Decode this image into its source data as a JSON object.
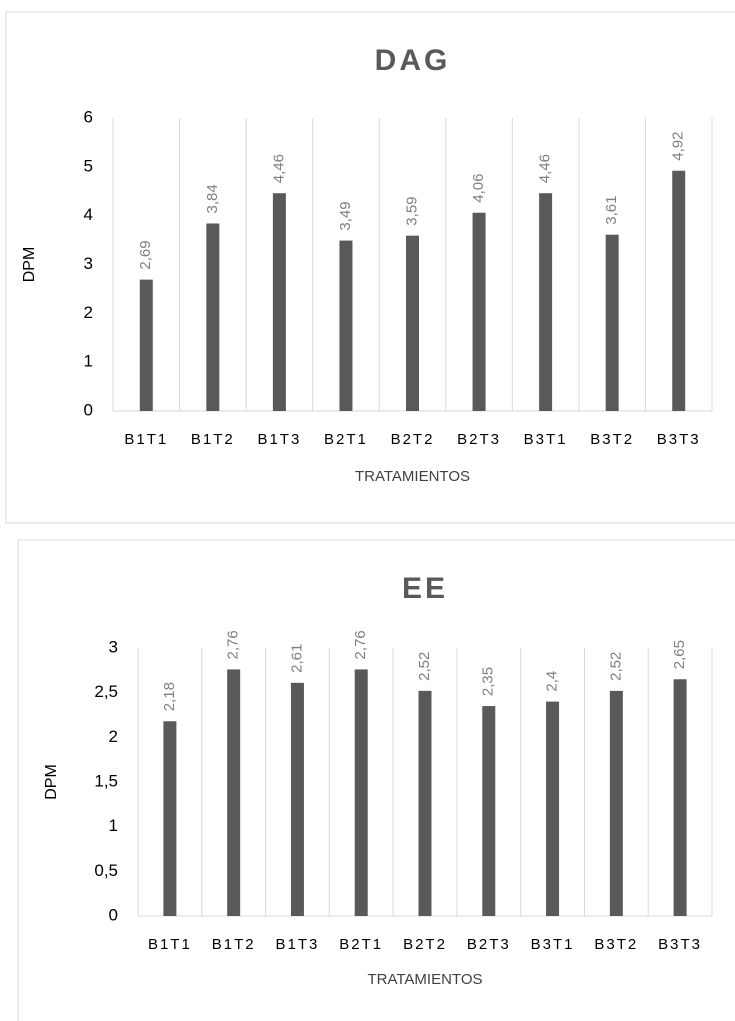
{
  "chart_data": [
    {
      "type": "bar",
      "title": "DAG",
      "y_label": "DPM",
      "x_label": "TRATAMIENTOS",
      "categories": [
        "B1T1",
        "B1T2",
        "B1T3",
        "B2T1",
        "B2T2",
        "B2T3",
        "B3T1",
        "B3T2",
        "B3T3"
      ],
      "values": [
        2.69,
        3.84,
        4.46,
        3.49,
        3.59,
        4.06,
        4.46,
        3.61,
        4.92
      ],
      "value_labels": [
        "2,69",
        "3,84",
        "4,46",
        "3,49",
        "3,59",
        "4,06",
        "4,46",
        "3,61",
        "4,92"
      ],
      "color": "#595959",
      "ylim": [
        0,
        6
      ],
      "yticks": [
        0,
        1,
        2,
        3,
        4,
        5,
        6
      ],
      "grid": "x"
    },
    {
      "type": "bar",
      "title": "EE",
      "y_label": "DPM",
      "x_label": "TRATAMIENTOS",
      "categories": [
        "B1T1",
        "B1T2",
        "B1T3",
        "B2T1",
        "B2T2",
        "B2T3",
        "B3T1",
        "B3T2",
        "B3T3"
      ],
      "values": [
        2.18,
        2.76,
        2.61,
        2.76,
        2.52,
        2.35,
        2.4,
        2.52,
        2.65
      ],
      "value_labels": [
        "2,18",
        "2,76",
        "2,61",
        "2,76",
        "2,52",
        "2,35",
        "2,4",
        "2,52",
        "2,65"
      ],
      "color": "#595959",
      "ylim": [
        0,
        3
      ],
      "yticks": [
        0,
        {
          "value": 0.5,
          "label": "0,5"
        },
        1,
        {
          "value": 1.5,
          "label": "1,5"
        },
        2,
        {
          "value": 2.5,
          "label": "2,5"
        },
        3
      ],
      "grid": "x"
    }
  ]
}
